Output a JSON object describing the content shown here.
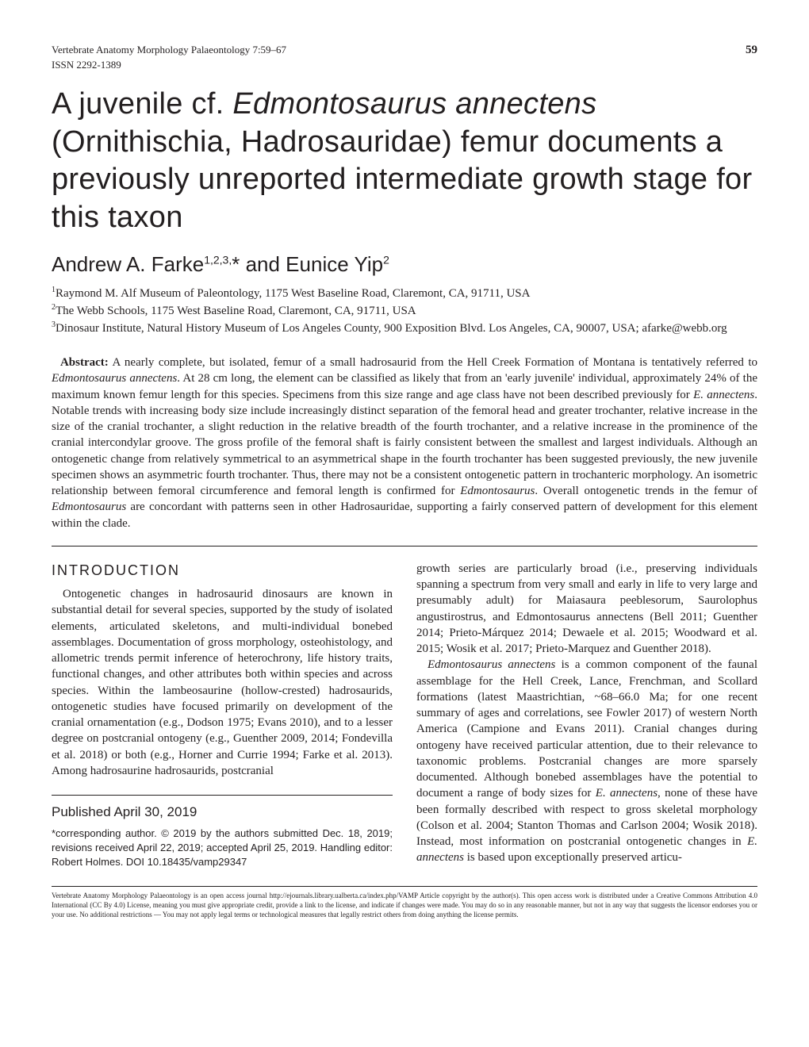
{
  "header": {
    "journal": "Vertebrate Anatomy Morphology Palaeontology 7:59–67",
    "issn": "ISSN 2292-1389",
    "page_number": "59"
  },
  "title": {
    "part1": "A juvenile cf. ",
    "italic1": "Edmontosaurus annectens",
    "part2": " (Ornithischia, Hadrosauridae) femur documents a previously unreported intermediate growth stage for this taxon"
  },
  "authors": "Andrew A. Farke",
  "authors_sup1": "1,2,3,",
  "authors_star": "*",
  "authors_and": " and Eunice Yip",
  "authors_sup2": "2",
  "affiliations": {
    "a1_sup": "1",
    "a1": "Raymond M. Alf Museum of Paleontology, 1175 West Baseline Road, Claremont, CA, 91711, USA",
    "a2_sup": "2",
    "a2": "The Webb Schools, 1175 West Baseline Road, Claremont, CA, 91711, USA",
    "a3_sup": "3",
    "a3": "Dinosaur Institute, Natural History Museum of Los Angeles County, 900 Exposition Blvd. Los Angeles, CA, 90007, USA; afarke@webb.org"
  },
  "abstract": {
    "label": "Abstract:",
    "p1": " A nearly complete, but isolated, femur of a small hadrosaurid from the Hell Creek Formation of Montana is tentatively referred to ",
    "i1": "Edmontosaurus annectens",
    "p2": ". At 28 cm long, the element can be classified as likely that from an 'early juvenile' individual, approximately 24% of the maximum known femur length for this species. Specimens from this size range and age class have not been described previously for ",
    "i2": "E. annectens",
    "p3": ". Notable trends with increasing body size include increasingly distinct separation of the femoral head and greater trochanter, relative increase in the size of the cranial trochanter, a slight reduction in the relative breadth of the fourth trochanter, and a relative increase in the prominence of the cranial intercondylar groove. The gross profile of the femoral shaft is fairly consistent between the smallest and largest individuals. Although an ontogenetic change from relatively symmetrical to an asymmetrical shape in the fourth trochanter has been suggested previously, the new juvenile specimen shows an asymmetric fourth trochanter. Thus, there may not be a consistent ontogenetic pattern in trochanteric morphology. An isometric relationship between femoral circumference and femoral length is confirmed for ",
    "i3": "Edmontosaurus",
    "p4": ". Overall ontogenetic trends in the femur of ",
    "i4": "Edmontosaurus",
    "p5": " are concordant with patterns seen in other Hadrosauridae, supporting a fairly conserved pattern of development for this element within the clade."
  },
  "introduction": {
    "heading": "INTRODUCTION",
    "left_p1": "Ontogenetic changes in hadrosaurid dinosaurs are known in substantial detail for several species, supported by the study of isolated elements, articulated skeletons, and multi-individual bonebed assemblages. Documentation of gross morphology, osteohistology, and allometric trends permit inference of heterochrony, life history traits, functional changes, and other attributes both within species and across species. Within the lambeosaurine (hollow-crested) hadrosaurids, ontogenetic studies have focused primarily on development of the cranial ornamentation (e.g., Dodson 1975; Evans 2010), and to a lesser degree on postcranial ontogeny (e.g., Guenther 2009, 2014; Fondevilla et al. 2018) or both (e.g., Horner and Currie 1994; Farke et al. 2013). Among hadrosaurine hadrosaurids, postcranial",
    "right_p1a": "growth series are particularly broad (i.e., preserving individuals spanning a spectrum from very small and early in life to very large and presumably adult) for ",
    "right_i1": "Maiasaura peeblesorum, Saurolophus angustirostrus,",
    "right_p1b": " and ",
    "right_i2": "Edmontosaurus annectens",
    "right_p1c": " (Bell 2011; Guenther 2014; Prieto-Márquez 2014; Dewaele et al. 2015; Woodward et al. 2015; Wosik et al. 2017; Prieto-Marquez and Guenther 2018).",
    "right_p2a": "Edmontosaurus annectens",
    "right_p2b": " is a common component of the faunal assemblage for the Hell Creek, Lance, Frenchman, and Scollard formations (latest Maastrichtian, ~68–66.0 Ma; for one recent summary of ages and correlations, see Fowler 2017) of western North America (Campione and Evans 2011). Cranial changes during ontogeny have received particular attention, due to their relevance to taxonomic problems. Postcranial changes are more sparsely documented. Although bonebed assemblages have the potential to document a range of body sizes for ",
    "right_i3": "E. annectens",
    "right_p2c": ", none of these have been formally described with respect to gross skeletal morphology (Colson et al. 2004; Stanton Thomas and Carlson 2004; Wosik 2018). Instead, most information on postcranial ontogenetic changes in ",
    "right_i4": "E. annectens",
    "right_p2d": " is based upon exceptionally preserved articu-"
  },
  "footnote": {
    "pub_date": "Published April 30, 2019",
    "text": " *corresponding author. © 2019 by the authors submitted Dec. 18, 2019; revisions received April 22, 2019; accepted April 25, 2019. Handling editor: Robert Holmes. DOI 10.18435/vamp29347"
  },
  "license": "Vertebrate Anatomy Morphology Palaeontology is an open access journal http://ejournals.library.ualberta.ca/index.php/VAMP  Article copyright by the author(s). This open access work is distributed under a Creative Commons Attribution 4.0 International (CC By 4.0) License, meaning you must give appropriate credit, provide a link to the license, and indicate if changes were made. You may do so in any reasonable manner, but not in any way that suggests the licensor endorses you or your use. No additional restrictions — You may not apply legal terms or technological measures that legally restrict others from doing anything the license permits."
}
